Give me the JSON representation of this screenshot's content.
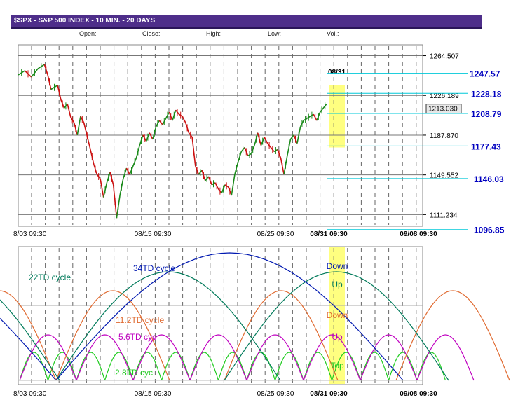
{
  "header": {
    "title": "$SPX - S&P 500 INDEX - 10 MIN. - 20 DAYS",
    "ohlc_labels": [
      "Open:",
      "Close:",
      "High:",
      "Low:",
      "Vol.:"
    ]
  },
  "colors": {
    "title_bg": "#4e2e8a",
    "price_up": "#1a8a1a",
    "price_down": "#cc1010",
    "annot_blue": "#0000c0",
    "projection_line": "#00c8d8",
    "highlight": "#ffff80",
    "cycle_34": "#0018b0",
    "cycle_22": "#007a5a",
    "cycle_11": "#e06a30",
    "cycle_5": "#c000c0",
    "cycle_2": "#20cc20"
  },
  "chart_data": [
    {
      "type": "line",
      "title": "$SPX - S&P 500 INDEX - 10 MIN. - 20 DAYS",
      "x_tick_labels": [
        "8/03 09:30",
        "08/15 09:30",
        "08/25 09:30",
        "08/31 09:30",
        "09/08 09:30"
      ],
      "y_tick_labels": [
        "1264.507",
        "1226.189",
        "1187.870",
        "1149.552",
        "1111.234"
      ],
      "ylim": [
        1100,
        1275
      ],
      "grid": true,
      "series": [
        {
          "price_path": [
            [
              0,
              1246
            ],
            [
              2,
              1250
            ],
            [
              4,
              1244
            ],
            [
              6,
              1252
            ],
            [
              8,
              1256
            ],
            [
              9,
              1246
            ],
            [
              10,
              1232
            ],
            [
              12,
              1236
            ],
            [
              13,
              1222
            ],
            [
              14,
              1214
            ],
            [
              15,
              1218
            ],
            [
              16,
              1205
            ],
            [
              17,
              1200
            ],
            [
              18,
              1188
            ],
            [
              19,
              1206
            ],
            [
              20,
              1200
            ],
            [
              22,
              1174
            ],
            [
              23,
              1160
            ],
            [
              24,
              1150
            ],
            [
              25,
              1146
            ],
            [
              26,
              1128
            ],
            [
              27,
              1142
            ],
            [
              28,
              1152
            ],
            [
              29,
              1140
            ],
            [
              30,
              1108
            ],
            [
              31,
              1130
            ],
            [
              32,
              1146
            ],
            [
              33,
              1156
            ],
            [
              34,
              1150
            ],
            [
              35,
              1158
            ],
            [
              36,
              1166
            ],
            [
              37,
              1178
            ],
            [
              38,
              1188
            ],
            [
              39,
              1182
            ],
            [
              40,
              1190
            ],
            [
              41,
              1184
            ],
            [
              42,
              1196
            ],
            [
              43,
              1202
            ],
            [
              44,
              1198
            ],
            [
              45,
              1204
            ],
            [
              46,
              1210
            ],
            [
              47,
              1202
            ],
            [
              48,
              1212
            ],
            [
              49,
              1208
            ],
            [
              50,
              1206
            ],
            [
              51,
              1200
            ],
            [
              52,
              1190
            ],
            [
              53,
              1186
            ],
            [
              54,
              1158
            ],
            [
              55,
              1150
            ],
            [
              56,
              1154
            ],
            [
              57,
              1144
            ],
            [
              58,
              1148
            ],
            [
              59,
              1140
            ],
            [
              60,
              1142
            ],
            [
              61,
              1136
            ],
            [
              62,
              1132
            ],
            [
              63,
              1140
            ],
            [
              64,
              1138
            ],
            [
              65,
              1130
            ],
            [
              66,
              1150
            ],
            [
              67,
              1162
            ],
            [
              68,
              1172
            ],
            [
              69,
              1176
            ],
            [
              70,
              1168
            ],
            [
              71,
              1170
            ],
            [
              72,
              1178
            ],
            [
              73,
              1190
            ],
            [
              74,
              1178
            ],
            [
              75,
              1186
            ],
            [
              76,
              1180
            ],
            [
              77,
              1176
            ],
            [
              78,
              1172
            ],
            [
              79,
              1174
            ],
            [
              80,
              1166
            ],
            [
              81,
              1150
            ],
            [
              82,
              1168
            ],
            [
              83,
              1184
            ],
            [
              84,
              1188
            ],
            [
              85,
              1180
            ],
            [
              86,
              1196
            ],
            [
              87,
              1202
            ],
            [
              88,
              1204
            ],
            [
              89,
              1206
            ],
            [
              90,
              1208
            ],
            [
              91,
              1202
            ],
            [
              92,
              1210
            ],
            [
              93,
              1214
            ],
            [
              94,
              1218
            ]
          ]
        }
      ],
      "annotations": {
        "date_marker": "08/31",
        "last_price": "1213.030",
        "projections": [
          "1247.57",
          "1228.18",
          "1208.79",
          "1177.43",
          "1146.03",
          "1096.85"
        ],
        "projection_values": [
          1247.57,
          1228.18,
          1208.79,
          1177.43,
          1146.03,
          1096.85
        ]
      }
    },
    {
      "type": "line",
      "x_tick_labels": [
        "8/03 09:30",
        "08/15 09:30",
        "08/25 09:30",
        "08/31 09:30",
        "09/08 09:30"
      ],
      "series": [
        {
          "name": "34TD cycle",
          "text": "34TD cycle"
        },
        {
          "name": "22TD cycle",
          "text": "22TD cycle"
        },
        {
          "name": "11.2TD cycle",
          "text": "11.2TD cycle"
        },
        {
          "name": "5.6TD cyc",
          "text": "5.6TD cyc"
        },
        {
          "name": "2.8TD cyc",
          "text": "2.8TD cyc"
        }
      ],
      "signals": [
        "Down",
        "Up",
        "Down",
        "Up",
        "Top"
      ]
    }
  ]
}
